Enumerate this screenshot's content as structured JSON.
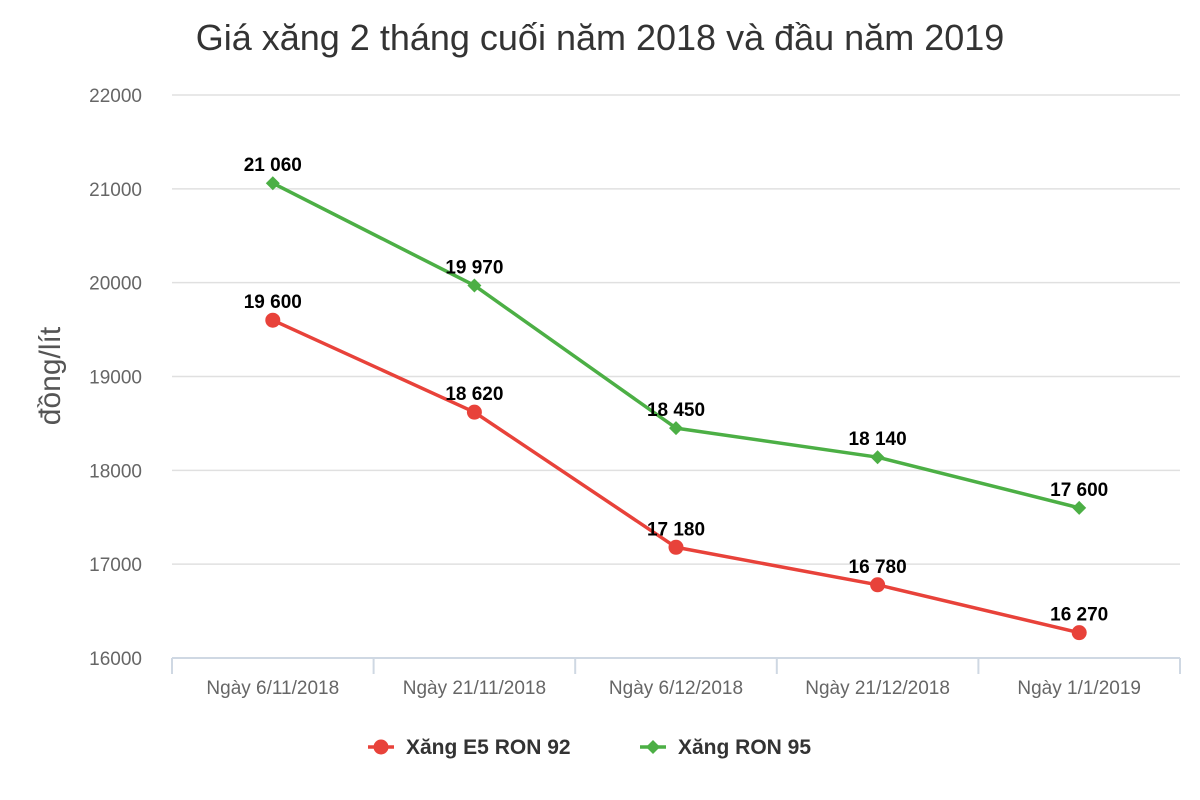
{
  "chart_data": {
    "type": "line",
    "title": "Giá xăng 2 tháng cuối năm 2018 và đầu năm 2019",
    "xlabel": "",
    "ylabel": "đồng/lít",
    "categories": [
      "Ngày 6/11/2018",
      "Ngày 21/11/2018",
      "Ngày 6/12/2018",
      "Ngày 21/12/2018",
      "Ngày 1/1/2019"
    ],
    "ylim": [
      16000,
      22000
    ],
    "yticks": [
      "16000",
      "17000",
      "18000",
      "19000",
      "20000",
      "21000",
      "22000"
    ],
    "grid": true,
    "legend_position": "bottom",
    "series": [
      {
        "name": "Xăng E5 RON 92",
        "color": "#e8423a",
        "marker": "circle",
        "values": [
          19600,
          18620,
          17180,
          16780,
          16270
        ],
        "labels": [
          "19 600",
          "18 620",
          "17 180",
          "16 780",
          "16 270"
        ]
      },
      {
        "name": "Xăng RON 95",
        "color": "#4caf45",
        "marker": "diamond",
        "values": [
          21060,
          19970,
          18450,
          18140,
          17600
        ],
        "labels": [
          "21 060",
          "19 970",
          "18 450",
          "18 140",
          "17 600"
        ]
      }
    ]
  }
}
